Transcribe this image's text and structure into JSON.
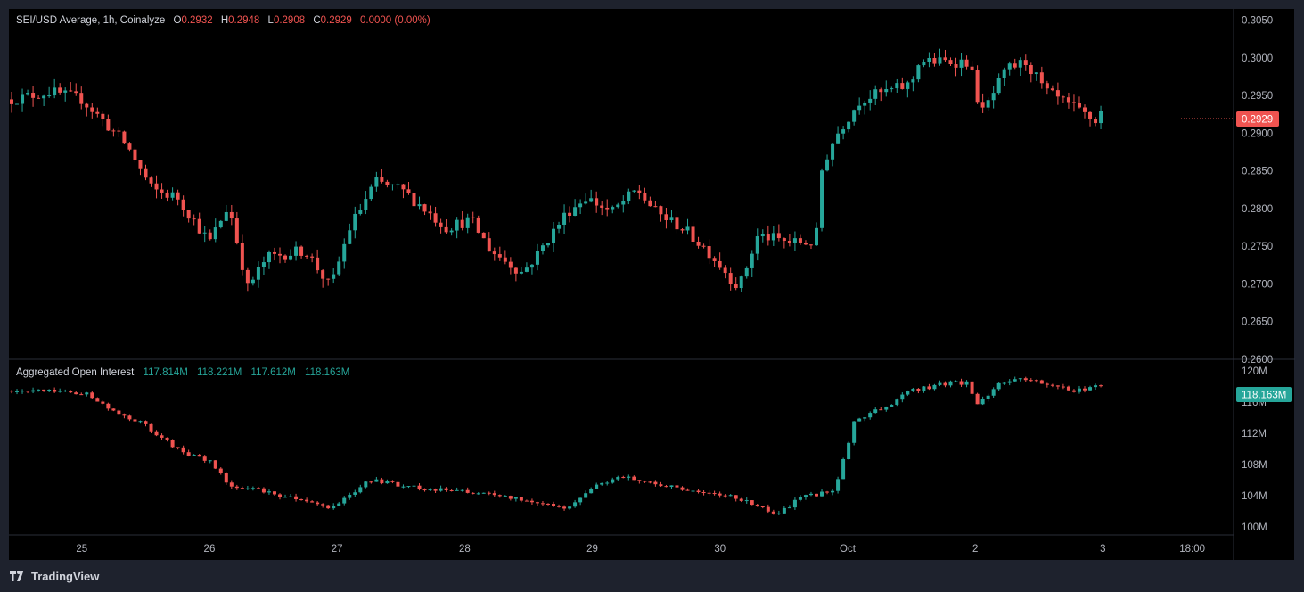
{
  "price_legend": {
    "title": "SEI/USD Average, 1h, Coinalyze",
    "open_label": "O",
    "open": "0.2932",
    "high_label": "H",
    "high": "0.2948",
    "low_label": "L",
    "low": "0.2908",
    "close_label": "C",
    "close": "0.2929",
    "change": "0.0000 (0.00%)"
  },
  "oi_legend": {
    "title": "Aggregated Open Interest",
    "o": "117.814M",
    "h": "118.221M",
    "l": "117.612M",
    "c": "118.163M"
  },
  "price_tag": "0.2929",
  "oi_tag": "118.163M",
  "footer": {
    "brand": "TradingView"
  },
  "colors": {
    "up": "#26a69a",
    "down": "#ef5350",
    "background": "#000000",
    "frame": "#1e222d",
    "text": "#d1d4dc"
  },
  "chart_data": [
    {
      "type": "candlestick",
      "title": "SEI/USD Average, 1h, Coinalyze",
      "x_ticks": [
        "25",
        "26",
        "27",
        "28",
        "29",
        "30",
        "Oct",
        "2",
        "3",
        "18:00"
      ],
      "y_ticks": [
        "0.2600",
        "0.2650",
        "0.2700",
        "0.2750",
        "0.2800",
        "0.2850",
        "0.2900",
        "0.2950",
        "0.3000",
        "0.3050"
      ],
      "ylim": [
        0.26,
        0.3065
      ],
      "grid": false,
      "last_value": 0.2929,
      "anchors": [
        {
          "x": 0.0,
          "y": 0.2945
        },
        {
          "x": 0.3,
          "y": 0.2955
        },
        {
          "x": 0.55,
          "y": 0.2945
        },
        {
          "x": 0.9,
          "y": 0.2885
        },
        {
          "x": 1.1,
          "y": 0.2825
        },
        {
          "x": 1.3,
          "y": 0.2815
        },
        {
          "x": 1.55,
          "y": 0.2755
        },
        {
          "x": 1.7,
          "y": 0.2805
        },
        {
          "x": 1.85,
          "y": 0.2695
        },
        {
          "x": 2.0,
          "y": 0.2735
        },
        {
          "x": 2.3,
          "y": 0.2745
        },
        {
          "x": 2.5,
          "y": 0.2695
        },
        {
          "x": 2.65,
          "y": 0.2775
        },
        {
          "x": 2.85,
          "y": 0.2835
        },
        {
          "x": 3.05,
          "y": 0.2825
        },
        {
          "x": 3.2,
          "y": 0.2805
        },
        {
          "x": 3.4,
          "y": 0.2775
        },
        {
          "x": 3.6,
          "y": 0.2785
        },
        {
          "x": 3.75,
          "y": 0.2745
        },
        {
          "x": 4.0,
          "y": 0.2715
        },
        {
          "x": 4.1,
          "y": 0.2735
        },
        {
          "x": 4.35,
          "y": 0.2795
        },
        {
          "x": 4.5,
          "y": 0.2815
        },
        {
          "x": 4.7,
          "y": 0.2795
        },
        {
          "x": 4.9,
          "y": 0.2825
        },
        {
          "x": 5.05,
          "y": 0.2795
        },
        {
          "x": 5.25,
          "y": 0.2775
        },
        {
          "x": 5.45,
          "y": 0.2745
        },
        {
          "x": 5.7,
          "y": 0.2695
        },
        {
          "x": 5.85,
          "y": 0.2765
        },
        {
          "x": 6.1,
          "y": 0.2755
        },
        {
          "x": 6.3,
          "y": 0.2755
        },
        {
          "x": 6.35,
          "y": 0.2855
        },
        {
          "x": 6.45,
          "y": 0.2895
        },
        {
          "x": 6.65,
          "y": 0.2945
        },
        {
          "x": 7.05,
          "y": 0.2965
        },
        {
          "x": 7.1,
          "y": 0.2995
        },
        {
          "x": 7.5,
          "y": 0.2995
        },
        {
          "x": 7.6,
          "y": 0.2925
        },
        {
          "x": 7.8,
          "y": 0.2985
        },
        {
          "x": 7.95,
          "y": 0.2995
        },
        {
          "x": 8.1,
          "y": 0.2955
        },
        {
          "x": 8.3,
          "y": 0.2935
        },
        {
          "x": 8.5,
          "y": 0.2915
        },
        {
          "x": 8.55,
          "y": 0.2929
        }
      ]
    },
    {
      "type": "candlestick",
      "title": "Aggregated Open Interest",
      "y_ticks": [
        "100M",
        "104M",
        "108M",
        "112M",
        "116M",
        "120M"
      ],
      "ylim": [
        99,
        121.5
      ],
      "grid": false,
      "last_value": 118.163,
      "anchors": [
        {
          "x": 0.0,
          "y": 117.5
        },
        {
          "x": 0.4,
          "y": 117.3
        },
        {
          "x": 0.6,
          "y": 117.0
        },
        {
          "x": 0.85,
          "y": 114.5
        },
        {
          "x": 1.0,
          "y": 113.5
        },
        {
          "x": 1.35,
          "y": 109.5
        },
        {
          "x": 1.55,
          "y": 108.5
        },
        {
          "x": 1.7,
          "y": 105.5
        },
        {
          "x": 2.0,
          "y": 104.5
        },
        {
          "x": 2.5,
          "y": 102.5
        },
        {
          "x": 2.8,
          "y": 106.0
        },
        {
          "x": 3.2,
          "y": 105.0
        },
        {
          "x": 3.6,
          "y": 104.5
        },
        {
          "x": 4.0,
          "y": 103.5
        },
        {
          "x": 4.35,
          "y": 102.5
        },
        {
          "x": 4.6,
          "y": 105.5
        },
        {
          "x": 4.8,
          "y": 106.5
        },
        {
          "x": 5.2,
          "y": 105.0
        },
        {
          "x": 5.6,
          "y": 104.0
        },
        {
          "x": 5.8,
          "y": 103.0
        },
        {
          "x": 6.0,
          "y": 101.5
        },
        {
          "x": 6.2,
          "y": 104.0
        },
        {
          "x": 6.45,
          "y": 104.5
        },
        {
          "x": 6.6,
          "y": 113.5
        },
        {
          "x": 6.9,
          "y": 116.0
        },
        {
          "x": 7.05,
          "y": 117.5
        },
        {
          "x": 7.35,
          "y": 118.5
        },
        {
          "x": 7.5,
          "y": 118.5
        },
        {
          "x": 7.55,
          "y": 115.5
        },
        {
          "x": 7.75,
          "y": 118.5
        },
        {
          "x": 7.95,
          "y": 119.0
        },
        {
          "x": 8.3,
          "y": 117.5
        },
        {
          "x": 8.55,
          "y": 118.163
        }
      ]
    }
  ]
}
